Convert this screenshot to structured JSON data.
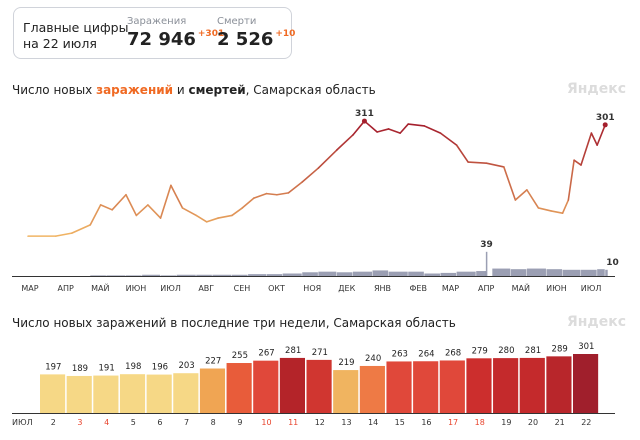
{
  "summary": {
    "label_line1": "Главные цифры",
    "label_line2": "на 22 июля",
    "infections": {
      "caption": "Заражения",
      "value": "72 946",
      "delta": "+301"
    },
    "deaths": {
      "caption": "Смерти",
      "value": "2 526",
      "delta": "+10"
    }
  },
  "brand": "Яндекс",
  "chart_data": [
    {
      "type": "line",
      "title_parts": {
        "prefix": "Число новых ",
        "infections": "заражений",
        "middle": " и ",
        "deaths": "смертей",
        "suffix": ", Самарская область"
      },
      "x_ticks": [
        {
          "label": "МАР",
          "date": "2020-03-01"
        },
        {
          "label": "АПР",
          "date": "2020-04-01"
        },
        {
          "label": "МАЙ",
          "date": "2020-05-01"
        },
        {
          "label": "ИЮН",
          "date": "2020-06-01"
        },
        {
          "label": "ИЮЛ",
          "date": "2020-07-01"
        },
        {
          "label": "АВГ",
          "date": "2020-08-01"
        },
        {
          "label": "СЕН",
          "date": "2020-09-01"
        },
        {
          "label": "ОКТ",
          "date": "2020-10-01"
        },
        {
          "label": "НОЯ",
          "date": "2020-11-01"
        },
        {
          "label": "ДЕК",
          "date": "2020-12-01"
        },
        {
          "label": "ЯНВ",
          "date": "2021-01-01"
        },
        {
          "label": "ФЕВ",
          "date": "2021-02-01"
        },
        {
          "label": "МАР",
          "date": "2021-03-01"
        },
        {
          "label": "АПР",
          "date": "2021-04-01"
        },
        {
          "label": "МАЙ",
          "date": "2021-05-01"
        },
        {
          "label": "ИЮН",
          "date": "2021-06-01"
        },
        {
          "label": "ИЮЛ",
          "date": "2021-07-01"
        }
      ],
      "infections": [
        [
          "2020-03-08",
          5
        ],
        [
          "2020-04-01",
          5
        ],
        [
          "2020-04-15",
          13
        ],
        [
          "2020-05-01",
          35
        ],
        [
          "2020-05-10",
          88
        ],
        [
          "2020-05-20",
          75
        ],
        [
          "2020-06-01",
          115
        ],
        [
          "2020-06-10",
          60
        ],
        [
          "2020-06-20",
          88
        ],
        [
          "2020-07-01",
          53
        ],
        [
          "2020-07-10",
          140
        ],
        [
          "2020-07-20",
          80
        ],
        [
          "2020-08-01",
          60
        ],
        [
          "2020-08-10",
          43
        ],
        [
          "2020-08-20",
          53
        ],
        [
          "2020-09-01",
          60
        ],
        [
          "2020-09-10",
          80
        ],
        [
          "2020-09-20",
          106
        ],
        [
          "2020-10-01",
          118
        ],
        [
          "2020-10-10",
          115
        ],
        [
          "2020-10-20",
          120
        ],
        [
          "2020-11-01",
          149
        ],
        [
          "2020-11-15",
          186
        ],
        [
          "2020-12-01",
          234
        ],
        [
          "2020-12-15",
          274
        ],
        [
          "2020-12-25",
          311
        ],
        [
          "2021-01-05",
          282
        ],
        [
          "2021-01-15",
          290
        ],
        [
          "2021-01-25",
          279
        ],
        [
          "2021-02-01",
          303
        ],
        [
          "2021-02-15",
          298
        ],
        [
          "2021-03-01",
          279
        ],
        [
          "2021-03-15",
          247
        ],
        [
          "2021-03-25",
          202
        ],
        [
          "2021-04-10",
          199
        ],
        [
          "2021-04-25",
          189
        ],
        [
          "2021-05-05",
          101
        ],
        [
          "2021-05-15",
          128
        ],
        [
          "2021-05-25",
          80
        ],
        [
          "2021-06-05",
          72
        ],
        [
          "2021-06-15",
          66
        ],
        [
          "2021-06-20",
          101
        ],
        [
          "2021-06-25",
          207
        ],
        [
          "2021-07-01",
          194
        ],
        [
          "2021-07-10",
          279
        ],
        [
          "2021-07-15",
          247
        ],
        [
          "2021-07-22",
          301
        ]
      ],
      "deaths": [
        [
          "2020-05-01",
          1
        ],
        [
          "2020-05-15",
          1
        ],
        [
          "2020-06-01",
          1
        ],
        [
          "2020-06-15",
          2
        ],
        [
          "2020-07-01",
          1
        ],
        [
          "2020-07-15",
          2
        ],
        [
          "2020-08-01",
          2
        ],
        [
          "2020-08-15",
          2
        ],
        [
          "2020-09-01",
          2
        ],
        [
          "2020-09-15",
          3
        ],
        [
          "2020-10-01",
          3
        ],
        [
          "2020-10-15",
          4
        ],
        [
          "2020-11-01",
          6
        ],
        [
          "2020-11-15",
          7
        ],
        [
          "2020-12-01",
          6
        ],
        [
          "2020-12-15",
          7
        ],
        [
          "2021-01-01",
          9
        ],
        [
          "2021-01-15",
          7
        ],
        [
          "2021-02-01",
          7
        ],
        [
          "2021-02-15",
          4
        ],
        [
          "2021-03-01",
          5
        ],
        [
          "2021-03-15",
          7
        ],
        [
          "2021-04-01",
          8
        ],
        [
          "2021-04-10",
          39
        ],
        [
          "2021-04-15",
          12
        ],
        [
          "2021-05-01",
          11
        ],
        [
          "2021-05-15",
          12
        ],
        [
          "2021-06-01",
          11
        ],
        [
          "2021-06-15",
          10
        ],
        [
          "2021-07-01",
          10
        ],
        [
          "2021-07-15",
          11
        ],
        [
          "2021-07-22",
          10
        ]
      ],
      "annotations": [
        {
          "date": "2020-12-25",
          "value": 311,
          "label": "311",
          "series": "infections"
        },
        {
          "date": "2021-07-22",
          "value": 301,
          "label": "301",
          "series": "infections"
        },
        {
          "date": "2021-04-10",
          "value": 39,
          "label": "39",
          "series": "deaths"
        },
        {
          "date": "2021-07-22",
          "value": 10,
          "label": "10",
          "series": "deaths"
        }
      ],
      "colors": {
        "low": "#f2b865",
        "high": "#a51f2d",
        "deaths": "#7a7f9a"
      }
    },
    {
      "type": "bar",
      "title": "Число новых заражений в последние три недели, Самарская область",
      "month_label": "ИЮЛ",
      "categories": [
        "2",
        "3",
        "4",
        "5",
        "6",
        "7",
        "8",
        "9",
        "10",
        "11",
        "12",
        "13",
        "14",
        "15",
        "16",
        "17",
        "18",
        "19",
        "20",
        "21",
        "22"
      ],
      "weekend": [
        false,
        true,
        true,
        false,
        false,
        false,
        false,
        false,
        true,
        true,
        false,
        false,
        false,
        false,
        false,
        true,
        true,
        false,
        false,
        false,
        false
      ],
      "values": [
        197,
        189,
        191,
        198,
        196,
        203,
        227,
        255,
        267,
        281,
        271,
        219,
        240,
        263,
        264,
        268,
        279,
        280,
        281,
        289,
        301
      ],
      "colors": [
        "#f6d886",
        "#f6d886",
        "#f6d886",
        "#f6d886",
        "#f6d886",
        "#f6d886",
        "#f0a553",
        "#e85c3a",
        "#e0483a",
        "#b42429",
        "#d03630",
        "#f0b460",
        "#ee7a45",
        "#e0483a",
        "#e0483a",
        "#e0483a",
        "#cc2e2d",
        "#c42a2c",
        "#c42a2c",
        "#b8262b",
        "#a01f2c"
      ],
      "weekend_color": "#e8452e",
      "ylim": [
        0,
        320
      ]
    }
  ]
}
